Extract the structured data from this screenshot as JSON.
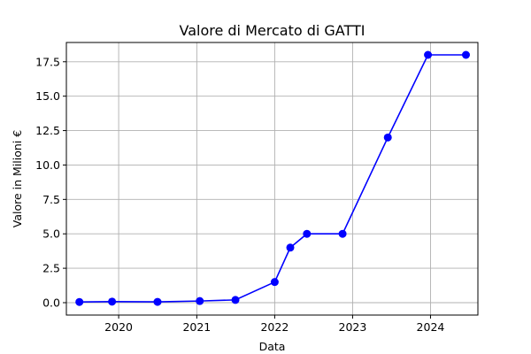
{
  "chart_data": {
    "type": "line",
    "title": "Valore di Mercato di GATTI",
    "xlabel": "Data",
    "ylabel": "Valore in Milioni €",
    "x_ticks": [
      "2020",
      "2021",
      "2022",
      "2023",
      "2024"
    ],
    "y_ticks": [
      "0.0",
      "2.5",
      "5.0",
      "7.5",
      "10.0",
      "12.5",
      "15.0",
      "17.5"
    ],
    "xlim": [
      "2019-05-01",
      "2024-08-10"
    ],
    "ylim": [
      -0.9,
      18.9
    ],
    "grid": true,
    "line_color": "#0000ff",
    "series": [
      {
        "x": [
          "2019-07-01",
          "2019-12-01",
          "2020-07-01",
          "2021-01-15",
          "2021-07-01",
          "2022-01-01",
          "2022-03-15",
          "2022-06-01",
          "2022-11-15",
          "2023-06-15",
          "2023-12-20",
          "2024-06-15"
        ],
        "y": [
          0.05,
          0.075,
          0.06,
          0.12,
          0.2,
          1.5,
          4.0,
          5.0,
          5.0,
          12.0,
          18.0,
          18.0
        ]
      }
    ]
  }
}
